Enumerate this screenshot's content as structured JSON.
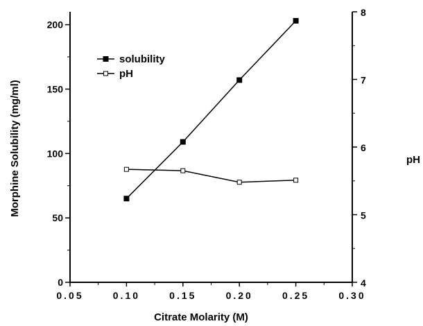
{
  "chart_data": {
    "type": "line",
    "title": "",
    "xlabel": "Citrate Molarity (M)",
    "ylabel": "Morphine Solubility (mg/ml)",
    "y2label": "pH",
    "xlim": [
      0.05,
      0.3
    ],
    "ylim": [
      0,
      210
    ],
    "y2lim": [
      4,
      8
    ],
    "grid": false,
    "legend_position": "upper-left",
    "x_ticks": [
      "0.05",
      "0.10",
      "0.15",
      "0.20",
      "0.25",
      "0.30"
    ],
    "y_ticks": [
      "0",
      "50",
      "100",
      "150",
      "200"
    ],
    "y2_ticks": [
      "4",
      "5",
      "6",
      "7",
      "8"
    ],
    "series": [
      {
        "name": "solubility",
        "axis": "left",
        "marker": "filled-square",
        "x": [
          0.1,
          0.15,
          0.2,
          0.25
        ],
        "y": [
          65,
          109,
          157,
          203
        ]
      },
      {
        "name": "pH",
        "axis": "right",
        "marker": "open-square",
        "x": [
          0.1,
          0.15,
          0.2,
          0.25
        ],
        "y": [
          5.67,
          5.65,
          5.48,
          5.51
        ]
      }
    ]
  }
}
